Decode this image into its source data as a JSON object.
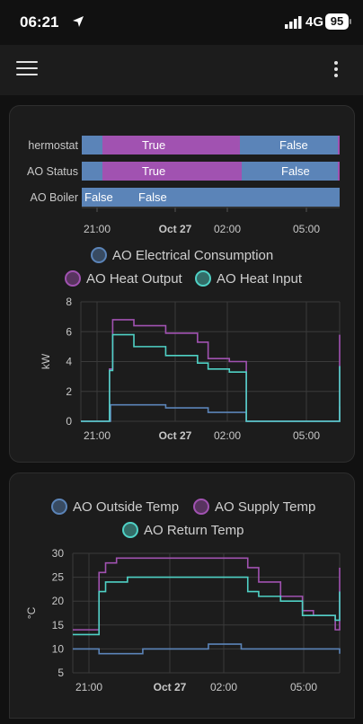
{
  "status_bar": {
    "time": "06:21",
    "network": "4G",
    "battery": "95"
  },
  "app_bar": {
    "menu_icon": "hamburger-menu-icon",
    "more_icon": "more-vertical-icon"
  },
  "timeline": {
    "x_ticks": [
      "21:00",
      "Oct 27",
      "02:00",
      "05:00"
    ],
    "rows": [
      {
        "label": "hermostat",
        "segments": [
          {
            "text": "",
            "color": "#5b84b8"
          },
          {
            "text": "True",
            "color": "#a152b1"
          },
          {
            "text": "False",
            "color": "#5b84b8"
          },
          {
            "text": "",
            "color": "#a152b1"
          }
        ]
      },
      {
        "label": "AO Status",
        "segments": [
          {
            "text": "",
            "color": "#5b84b8"
          },
          {
            "text": "True",
            "color": "#a152b1"
          },
          {
            "text": "False",
            "color": "#5b84b8"
          },
          {
            "text": "",
            "color": "#a152b1"
          }
        ]
      },
      {
        "label": "AO Boiler",
        "segments": [
          {
            "text": "False",
            "color": "#5b84b8"
          },
          {
            "text": "False",
            "color": "#5b84b8"
          }
        ]
      }
    ]
  },
  "chart_data": [
    {
      "type": "line",
      "ylabel": "kW",
      "ylim": [
        0,
        8
      ],
      "y_ticks": [
        "0",
        "2",
        "4",
        "6",
        "8"
      ],
      "x_ticks": [
        "21:00",
        "Oct 27",
        "02:00",
        "05:00"
      ],
      "legend": [
        "AO Electrical Consumption",
        "AO Heat Output",
        "AO Heat Input"
      ],
      "series": [
        {
          "name": "AO Electrical Consumption",
          "color": "#5b84b8",
          "points": [
            [
              0,
              0
            ],
            [
              1.3,
              0
            ],
            [
              1.4,
              1.1
            ],
            [
              4.0,
              0.9
            ],
            [
              6.0,
              0.6
            ],
            [
              7.8,
              0.6
            ],
            [
              7.8,
              0
            ],
            [
              12.0,
              0
            ],
            [
              12.2,
              1.0
            ]
          ]
        },
        {
          "name": "AO Heat Output",
          "color": "#a152b1",
          "points": [
            [
              0,
              0
            ],
            [
              1.3,
              0
            ],
            [
              1.35,
              3.5
            ],
            [
              1.5,
              6.8
            ],
            [
              2.5,
              6.4
            ],
            [
              4.0,
              5.9
            ],
            [
              5.5,
              5.3
            ],
            [
              6.0,
              4.2
            ],
            [
              7.0,
              4.0
            ],
            [
              7.8,
              3.6
            ],
            [
              7.8,
              0
            ],
            [
              12.0,
              0
            ],
            [
              12.2,
              5.8
            ]
          ]
        },
        {
          "name": "AO Heat Input",
          "color": "#4fd1c5",
          "points": [
            [
              0,
              0
            ],
            [
              1.3,
              0
            ],
            [
              1.35,
              3.4
            ],
            [
              1.5,
              5.8
            ],
            [
              2.5,
              5.0
            ],
            [
              4.0,
              4.4
            ],
            [
              5.5,
              3.9
            ],
            [
              6.0,
              3.5
            ],
            [
              7.0,
              3.3
            ],
            [
              7.8,
              3.0
            ],
            [
              7.8,
              0
            ],
            [
              12.0,
              0
            ],
            [
              12.2,
              3.7
            ]
          ]
        }
      ]
    },
    {
      "type": "line",
      "ylabel": "°C",
      "ylim": [
        5,
        30
      ],
      "y_ticks": [
        "5",
        "10",
        "15",
        "20",
        "25",
        "30"
      ],
      "x_ticks": [
        "21:00",
        "Oct 27",
        "02:00",
        "05:00"
      ],
      "legend": [
        "AO Outside Temp",
        "AO Supply Temp",
        "AO Return Temp"
      ],
      "series": [
        {
          "name": "AO Outside Temp",
          "color": "#5b84b8",
          "points": [
            [
              0,
              10
            ],
            [
              1.0,
              10
            ],
            [
              1.2,
              9
            ],
            [
              3.0,
              9
            ],
            [
              3.2,
              10
            ],
            [
              6.0,
              10
            ],
            [
              6.2,
              11
            ],
            [
              7.5,
              11
            ],
            [
              7.7,
              10
            ],
            [
              12.0,
              10
            ],
            [
              12.2,
              9
            ]
          ]
        },
        {
          "name": "AO Supply Temp",
          "color": "#a152b1",
          "points": [
            [
              0,
              14
            ],
            [
              1.0,
              14
            ],
            [
              1.2,
              26
            ],
            [
              1.5,
              28
            ],
            [
              2.0,
              29
            ],
            [
              4.0,
              29
            ],
            [
              6.0,
              29
            ],
            [
              7.5,
              29
            ],
            [
              8.0,
              27
            ],
            [
              8.5,
              24
            ],
            [
              9.5,
              21
            ],
            [
              10.5,
              18
            ],
            [
              11.0,
              17
            ],
            [
              12.0,
              14
            ],
            [
              12.2,
              27
            ]
          ]
        },
        {
          "name": "AO Return Temp",
          "color": "#4fd1c5",
          "points": [
            [
              0,
              13
            ],
            [
              1.0,
              13
            ],
            [
              1.2,
              22
            ],
            [
              1.5,
              24
            ],
            [
              2.5,
              25
            ],
            [
              4.0,
              25
            ],
            [
              6.0,
              25
            ],
            [
              7.5,
              25
            ],
            [
              8.0,
              22
            ],
            [
              8.5,
              21
            ],
            [
              9.5,
              20
            ],
            [
              10.5,
              17
            ],
            [
              11.0,
              17
            ],
            [
              12.0,
              16
            ],
            [
              12.2,
              22
            ]
          ]
        }
      ]
    }
  ]
}
